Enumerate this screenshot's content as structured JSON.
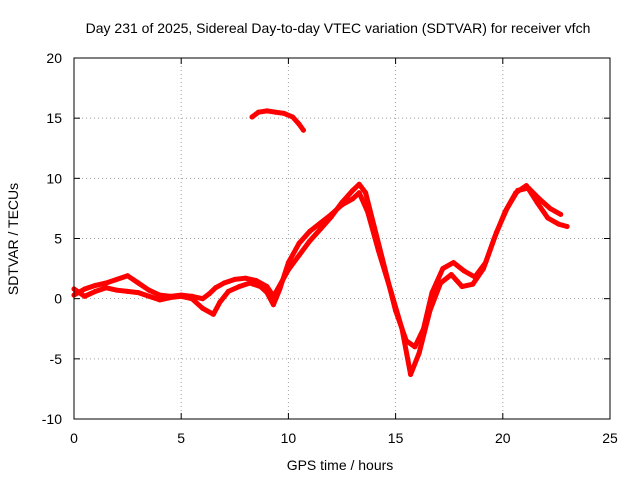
{
  "chart_data": {
    "type": "line",
    "title": "Day 231 of 2025, Sidereal Day-to-day VTEC variation (SDTVAR) for receiver vfch",
    "xlabel": "GPS time / hours",
    "ylabel": "SDTVAR / TECUs",
    "xlim": [
      0,
      25
    ],
    "ylim": [
      -10,
      20
    ],
    "xticks": [
      0,
      5,
      10,
      15,
      20,
      25
    ],
    "yticks": [
      -10,
      -5,
      0,
      5,
      10,
      15,
      20
    ],
    "grid": true,
    "legend": "none",
    "colors": {
      "series": "#ff0000",
      "grid": "#a0a0a0",
      "axis": "#000000"
    },
    "series": [
      {
        "name": "sdtvar-main-a",
        "points": [
          [
            0.0,
            0.3
          ],
          [
            0.5,
            0.8
          ],
          [
            1.0,
            1.1
          ],
          [
            1.5,
            1.3
          ],
          [
            2.0,
            1.6
          ],
          [
            2.5,
            1.9
          ],
          [
            3.0,
            1.3
          ],
          [
            3.5,
            0.7
          ],
          [
            4.0,
            0.3
          ],
          [
            4.5,
            0.2
          ],
          [
            5.0,
            0.3
          ],
          [
            5.5,
            0.2
          ],
          [
            6.0,
            0.0
          ],
          [
            6.3,
            0.4
          ],
          [
            6.6,
            0.9
          ],
          [
            7.0,
            1.3
          ],
          [
            7.5,
            1.6
          ],
          [
            8.0,
            1.7
          ],
          [
            8.5,
            1.5
          ],
          [
            9.0,
            1.0
          ],
          [
            9.3,
            0.2
          ],
          [
            9.5,
            0.8
          ],
          [
            10.0,
            2.4
          ],
          [
            10.5,
            3.6
          ],
          [
            11.0,
            4.8
          ],
          [
            11.5,
            5.8
          ],
          [
            12.0,
            6.8
          ],
          [
            12.5,
            8.0
          ],
          [
            13.0,
            9.0
          ],
          [
            13.3,
            9.5
          ],
          [
            13.6,
            8.8
          ],
          [
            14.0,
            6.0
          ],
          [
            14.5,
            2.5
          ],
          [
            15.0,
            -1.0
          ],
          [
            15.5,
            -3.5
          ],
          [
            15.9,
            -4.0
          ],
          [
            16.3,
            -2.5
          ],
          [
            16.7,
            0.5
          ],
          [
            17.2,
            2.5
          ],
          [
            17.7,
            3.0
          ],
          [
            18.2,
            2.3
          ],
          [
            18.7,
            1.8
          ],
          [
            19.2,
            3.0
          ],
          [
            19.7,
            5.5
          ],
          [
            20.2,
            7.5
          ],
          [
            20.7,
            9.0
          ],
          [
            21.2,
            9.2
          ],
          [
            21.7,
            8.3
          ],
          [
            22.2,
            7.5
          ],
          [
            22.7,
            7.0
          ]
        ]
      },
      {
        "name": "sdtvar-main-b",
        "points": [
          [
            0.0,
            0.8
          ],
          [
            0.5,
            0.2
          ],
          [
            1.0,
            0.6
          ],
          [
            1.5,
            0.9
          ],
          [
            2.0,
            0.7
          ],
          [
            2.5,
            0.6
          ],
          [
            3.0,
            0.5
          ],
          [
            3.5,
            0.2
          ],
          [
            4.0,
            -0.1
          ],
          [
            4.5,
            0.1
          ],
          [
            5.0,
            0.2
          ],
          [
            5.5,
            0.0
          ],
          [
            6.0,
            -0.8
          ],
          [
            6.5,
            -1.3
          ],
          [
            6.8,
            -0.3
          ],
          [
            7.2,
            0.6
          ],
          [
            7.7,
            1.0
          ],
          [
            8.2,
            1.3
          ],
          [
            8.7,
            1.0
          ],
          [
            9.0,
            0.5
          ],
          [
            9.3,
            -0.5
          ],
          [
            9.6,
            0.8
          ],
          [
            10.0,
            3.0
          ],
          [
            10.5,
            4.6
          ],
          [
            11.0,
            5.6
          ],
          [
            11.5,
            6.3
          ],
          [
            12.0,
            7.0
          ],
          [
            12.5,
            7.8
          ],
          [
            13.0,
            8.3
          ],
          [
            13.3,
            8.8
          ],
          [
            13.7,
            7.2
          ],
          [
            14.2,
            4.0
          ],
          [
            14.8,
            0.5
          ],
          [
            15.3,
            -2.5
          ],
          [
            15.7,
            -6.3
          ],
          [
            16.1,
            -4.5
          ],
          [
            16.6,
            -1.0
          ],
          [
            17.1,
            1.3
          ],
          [
            17.6,
            2.0
          ],
          [
            18.1,
            1.0
          ],
          [
            18.6,
            1.2
          ],
          [
            19.1,
            2.5
          ],
          [
            19.6,
            5.0
          ],
          [
            20.1,
            7.2
          ],
          [
            20.6,
            8.8
          ],
          [
            21.1,
            9.4
          ],
          [
            21.6,
            8.0
          ],
          [
            22.1,
            6.7
          ],
          [
            22.6,
            6.2
          ],
          [
            23.0,
            6.0
          ]
        ]
      },
      {
        "name": "sdtvar-offset-segment",
        "points": [
          [
            8.3,
            15.1
          ],
          [
            8.6,
            15.5
          ],
          [
            9.0,
            15.6
          ],
          [
            9.4,
            15.5
          ],
          [
            9.8,
            15.4
          ],
          [
            10.2,
            15.1
          ],
          [
            10.5,
            14.5
          ],
          [
            10.7,
            14.0
          ]
        ]
      }
    ]
  }
}
